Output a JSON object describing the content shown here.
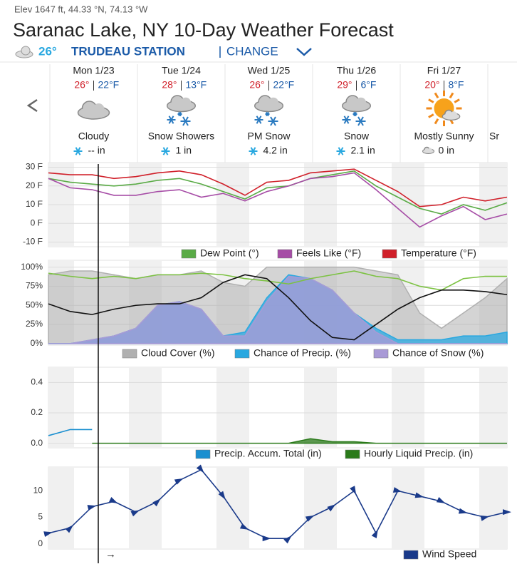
{
  "header": {
    "location": "Elev 1647 ft, 44.33 °N, 74.13 °W",
    "title": "Saranac Lake, NY 10-Day Weather Forecast",
    "current_temp": "26°",
    "station": "TRUDEAU STATION",
    "change": "CHANGE"
  },
  "days": [
    {
      "name": "Mon 1/23",
      "hi": "26°",
      "lo": "22°F",
      "icon": "cloudy",
      "condition": "Cloudy",
      "precip_icon": "snow",
      "precip": "-- in"
    },
    {
      "name": "Tue 1/24",
      "hi": "28°",
      "lo": "13°F",
      "icon": "snow",
      "condition": "Snow Showers",
      "precip_icon": "snow",
      "precip": "1 in"
    },
    {
      "name": "Wed 1/25",
      "hi": "26°",
      "lo": "22°F",
      "icon": "snow",
      "condition": "PM Snow",
      "precip_icon": "snow",
      "precip": "4.2 in"
    },
    {
      "name": "Thu 1/26",
      "hi": "29°",
      "lo": "6°F",
      "icon": "snow",
      "condition": "Snow",
      "precip_icon": "snow",
      "precip": "2.1 in"
    },
    {
      "name": "Fri 1/27",
      "hi": "20°",
      "lo": "8°F",
      "icon": "sunny",
      "condition": "Mostly Sunny",
      "precip_icon": "cloud",
      "precip": "0 in"
    },
    {
      "condition": "Sr"
    }
  ],
  "now_marker": "→",
  "chart_data": [
    {
      "type": "line",
      "ylim": [
        -12.5,
        32.5
      ],
      "yticks": [
        {
          "value": 30,
          "label": "30 F"
        },
        {
          "value": 20,
          "label": "20 F"
        },
        {
          "value": 10,
          "label": "10 F"
        },
        {
          "value": 0,
          "label": "0 F"
        },
        {
          "value": -10,
          "label": "-10 F"
        }
      ],
      "grid": true,
      "series": [
        {
          "name": "Dew Point (°)",
          "color": "#5aab46",
          "values": [
            24,
            22,
            21,
            20,
            21,
            23,
            24,
            21,
            17,
            13,
            19,
            20,
            24,
            26,
            28,
            20,
            14,
            8,
            5,
            10,
            7,
            11
          ]
        },
        {
          "name": "Feels Like (°F)",
          "color": "#a64ca6",
          "values": [
            24,
            19,
            18,
            15,
            15,
            17,
            18,
            14,
            16,
            12,
            17,
            20,
            24,
            25,
            27,
            18,
            8,
            -2,
            4,
            9,
            2,
            5
          ]
        },
        {
          "name": "Temperature (°F)",
          "color": "#d0202a",
          "values": [
            27,
            26,
            26,
            24,
            25,
            27,
            28,
            26,
            21,
            15,
            22,
            23,
            27,
            28,
            29,
            23,
            17,
            9,
            10,
            14,
            12,
            14
          ]
        }
      ]
    },
    {
      "type": "line",
      "ylim": [
        -2,
        109
      ],
      "yticks": [
        {
          "value": 100,
          "label": "100%"
        },
        {
          "value": 75,
          "label": "75%"
        },
        {
          "value": 50,
          "label": "50%"
        },
        {
          "value": 25,
          "label": "25%"
        },
        {
          "value": 0,
          "label": "0%"
        }
      ],
      "grid": true,
      "series": [
        {
          "name": "Cloud Cover (%)",
          "color": "#b0b0b0",
          "area": true,
          "values": [
            90,
            95,
            95,
            90,
            85,
            90,
            90,
            95,
            80,
            75,
            100,
            100,
            100,
            100,
            100,
            95,
            90,
            40,
            20,
            40,
            60,
            85
          ]
        },
        {
          "name": "Chance of Precip. (%)",
          "color": "#29a8e0",
          "area": true,
          "values": [
            0,
            0,
            5,
            10,
            20,
            50,
            55,
            45,
            10,
            15,
            60,
            90,
            85,
            70,
            40,
            20,
            5,
            5,
            5,
            10,
            10,
            15
          ]
        },
        {
          "name": "Chance of Snow (%)",
          "color": "#a99ad6",
          "area": true,
          "values": [
            0,
            0,
            5,
            10,
            20,
            50,
            55,
            45,
            10,
            10,
            55,
            88,
            85,
            70,
            40,
            15,
            0,
            0,
            0,
            0,
            0,
            0
          ]
        },
        {
          "color": "#7cc242",
          "values": [
            92,
            88,
            85,
            88,
            85,
            90,
            90,
            92,
            90,
            85,
            82,
            78,
            85,
            90,
            95,
            88,
            85,
            75,
            70,
            85,
            88,
            88
          ]
        },
        {
          "color": "#111111",
          "values": [
            52,
            42,
            38,
            45,
            50,
            52,
            52,
            60,
            80,
            90,
            85,
            60,
            30,
            8,
            5,
            25,
            45,
            60,
            70,
            70,
            68,
            64
          ]
        }
      ]
    },
    {
      "type": "line",
      "ylim": [
        -0.03,
        0.5
      ],
      "yticks": [
        0.4,
        0.2,
        {
          "value": 0,
          "label": "0.0"
        }
      ],
      "grid": true,
      "series": [
        {
          "name": "Precip. Accum. Total (in)",
          "color": "#1a8fd0",
          "values": [
            0.05,
            0.09,
            0.09,
            null,
            null,
            null,
            null,
            null,
            null,
            null,
            null,
            null,
            null,
            null,
            null,
            null,
            null,
            null,
            null,
            null,
            null,
            null
          ]
        },
        {
          "name": "Hourly Liquid Precip. (in)",
          "color": "#2a7a1a",
          "area": true,
          "values": [
            null,
            null,
            0,
            0,
            0,
            0,
            0,
            0,
            0,
            0,
            0,
            0,
            0.03,
            0.01,
            0.01,
            0,
            0,
            0,
            0,
            0,
            0,
            0
          ]
        }
      ]
    },
    {
      "type": "line",
      "ylim": [
        -1,
        14.5
      ],
      "yticks": [
        10,
        5,
        0
      ],
      "grid": false,
      "series": [
        {
          "name": "Wind Speed",
          "color": "#1a3a8a",
          "markers": true,
          "values": [
            2,
            3,
            7,
            8,
            6,
            8,
            12,
            14,
            9,
            3,
            1,
            1,
            5,
            7,
            10,
            2,
            10,
            9,
            8,
            6,
            5,
            6
          ]
        }
      ]
    }
  ]
}
